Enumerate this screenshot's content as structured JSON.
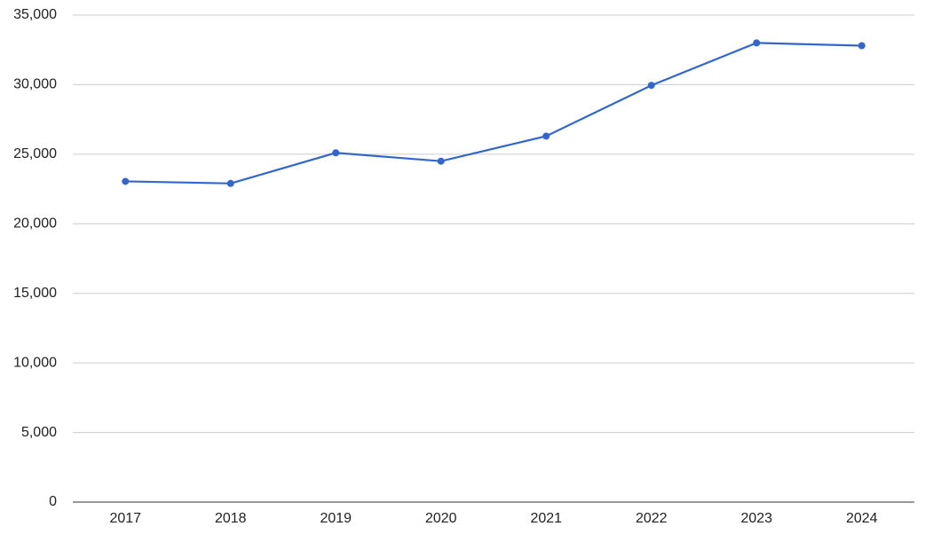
{
  "chart_data": {
    "type": "line",
    "categories": [
      "2017",
      "2018",
      "2019",
      "2020",
      "2021",
      "2022",
      "2023",
      "2024"
    ],
    "series": [
      {
        "color": "#3366cc",
        "values": [
          23050,
          22900,
          25100,
          24500,
          26300,
          29950,
          33000,
          32800
        ]
      }
    ],
    "ylim": [
      0,
      35000
    ],
    "yticks": [
      0,
      {
        "value": 5000,
        "label": "5,000"
      },
      {
        "value": 10000,
        "label": "10,000"
      },
      {
        "value": 15000,
        "label": "15,000"
      },
      {
        "value": 20000,
        "label": "20,000"
      },
      {
        "value": 25000,
        "label": "25,000"
      },
      {
        "value": 30000,
        "label": "30,000"
      },
      {
        "value": 35000,
        "label": "35,000"
      }
    ],
    "grid": true
  }
}
